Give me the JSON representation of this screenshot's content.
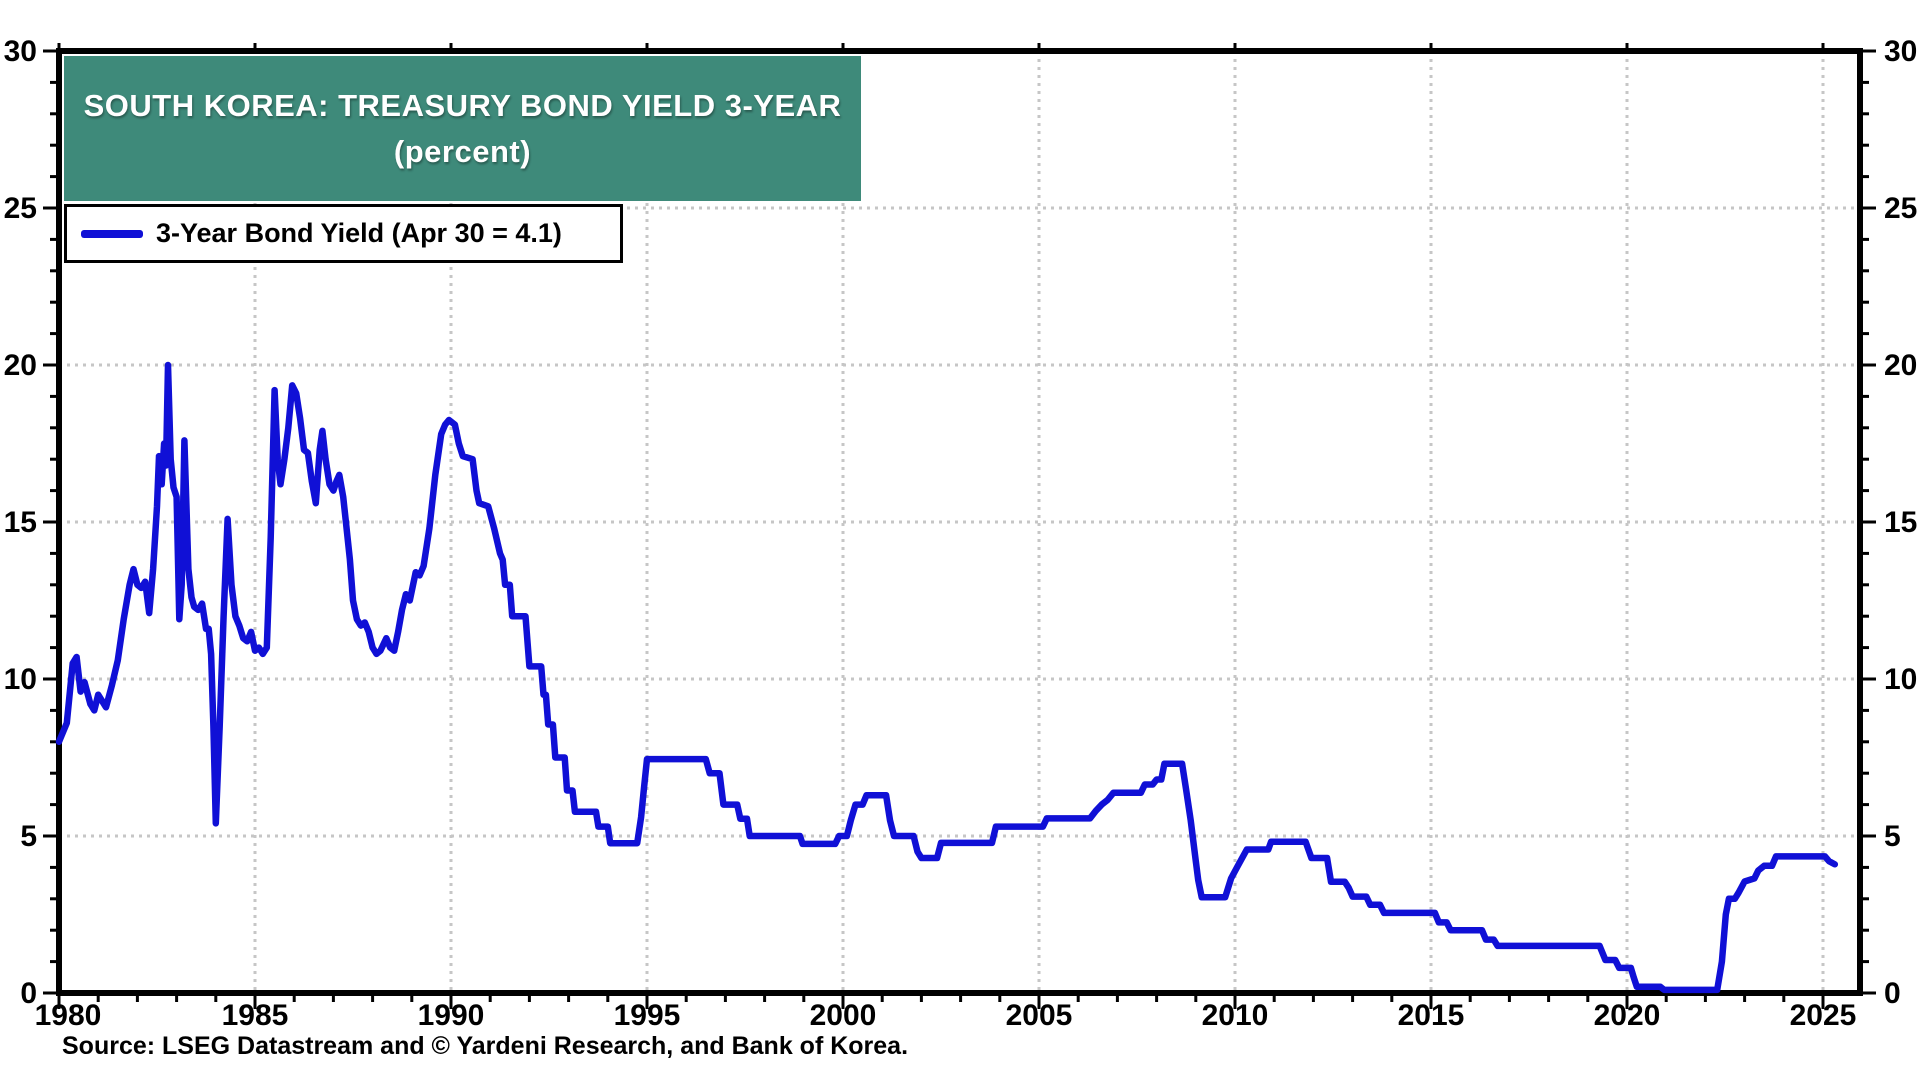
{
  "page": {
    "background": "#ffffff"
  },
  "title_box": {
    "line1": "SOUTH KOREA: TREASURY BOND YIELD 3-YEAR",
    "line2": "(percent)",
    "bg_color": "#3E8A7A",
    "text_color": "#ffffff"
  },
  "legend": {
    "label": "3-Year Bond Yield (Apr 30 = 4.1)",
    "line_color": "#1010D6"
  },
  "source": {
    "text": "Source: LSEG Datastream and © Yardeni Research, and Bank of Korea."
  },
  "axis": {
    "y_major_labels": [
      "0",
      "5",
      "10",
      "15",
      "20",
      "25",
      "30"
    ],
    "x_major_labels": [
      "1980",
      "1985",
      "1990",
      "1995",
      "2000",
      "2005",
      "2010",
      "2015",
      "2020",
      "2025"
    ],
    "grid_color": "#c6c6c6",
    "axis_color": "#000000"
  },
  "chart_data": {
    "type": "line",
    "title": "SOUTH KOREA: TREASURY BOND YIELD 3-YEAR",
    "subtitle": "(percent)",
    "xlabel": "",
    "ylabel": "percent",
    "xlim": [
      1980,
      2026
    ],
    "ylim": [
      0,
      30
    ],
    "y_ticks_major": [
      0,
      5,
      10,
      15,
      20,
      25,
      30
    ],
    "x_ticks_major": [
      1980,
      1985,
      1990,
      1995,
      2000,
      2005,
      2010,
      2015,
      2020,
      2025
    ],
    "grid": "dotted",
    "legend_position": "top-left",
    "last_point_annotation": "Apr 30 = 4.1",
    "series": [
      {
        "name": "3-Year Bond Yield (Apr 30 = 4.1)",
        "color": "#1010D6",
        "points": [
          [
            1980.0,
            8.0
          ],
          [
            1980.2,
            8.6
          ],
          [
            1980.35,
            10.5
          ],
          [
            1980.45,
            10.7
          ],
          [
            1980.55,
            9.6
          ],
          [
            1980.65,
            9.9
          ],
          [
            1980.8,
            9.2
          ],
          [
            1980.9,
            9.0
          ],
          [
            1981.0,
            9.5
          ],
          [
            1981.1,
            9.3
          ],
          [
            1981.2,
            9.1
          ],
          [
            1981.35,
            9.8
          ],
          [
            1981.5,
            10.6
          ],
          [
            1981.65,
            11.9
          ],
          [
            1981.8,
            13.0
          ],
          [
            1981.9,
            13.5
          ],
          [
            1982.0,
            13.0
          ],
          [
            1982.1,
            12.9
          ],
          [
            1982.2,
            13.1
          ],
          [
            1982.3,
            12.1
          ],
          [
            1982.4,
            13.5
          ],
          [
            1982.5,
            15.5
          ],
          [
            1982.55,
            17.1
          ],
          [
            1982.62,
            16.2
          ],
          [
            1982.68,
            17.5
          ],
          [
            1982.73,
            16.8
          ],
          [
            1982.78,
            20.0
          ],
          [
            1982.85,
            17.0
          ],
          [
            1982.92,
            16.1
          ],
          [
            1983.0,
            15.8
          ],
          [
            1983.07,
            11.9
          ],
          [
            1983.13,
            13.0
          ],
          [
            1983.2,
            17.6
          ],
          [
            1983.3,
            13.5
          ],
          [
            1983.38,
            12.6
          ],
          [
            1983.45,
            12.3
          ],
          [
            1983.55,
            12.2
          ],
          [
            1983.65,
            12.4
          ],
          [
            1983.75,
            11.6
          ],
          [
            1983.82,
            11.6
          ],
          [
            1983.88,
            10.8
          ],
          [
            1983.94,
            8.5
          ],
          [
            1984.0,
            5.4
          ],
          [
            1984.1,
            8.5
          ],
          [
            1984.2,
            12.0
          ],
          [
            1984.3,
            15.1
          ],
          [
            1984.4,
            13.0
          ],
          [
            1984.5,
            12.0
          ],
          [
            1984.6,
            11.7
          ],
          [
            1984.7,
            11.3
          ],
          [
            1984.8,
            11.2
          ],
          [
            1984.9,
            11.5
          ],
          [
            1985.0,
            10.9
          ],
          [
            1985.1,
            11.0
          ],
          [
            1985.2,
            10.8
          ],
          [
            1985.3,
            11.0
          ],
          [
            1985.4,
            14.5
          ],
          [
            1985.5,
            19.2
          ],
          [
            1985.58,
            17.0
          ],
          [
            1985.65,
            16.2
          ],
          [
            1985.75,
            17.0
          ],
          [
            1985.85,
            18.0
          ],
          [
            1985.95,
            19.35
          ],
          [
            1986.05,
            19.1
          ],
          [
            1986.15,
            18.3
          ],
          [
            1986.25,
            17.3
          ],
          [
            1986.35,
            17.2
          ],
          [
            1986.45,
            16.3
          ],
          [
            1986.55,
            15.6
          ],
          [
            1986.65,
            17.3
          ],
          [
            1986.72,
            17.9
          ],
          [
            1986.8,
            17.0
          ],
          [
            1986.9,
            16.2
          ],
          [
            1987.0,
            16.0
          ],
          [
            1987.08,
            16.3
          ],
          [
            1987.15,
            16.5
          ],
          [
            1987.25,
            15.8
          ],
          [
            1987.32,
            15.0
          ],
          [
            1987.42,
            13.8
          ],
          [
            1987.5,
            12.5
          ],
          [
            1987.6,
            11.9
          ],
          [
            1987.7,
            11.7
          ],
          [
            1987.8,
            11.8
          ],
          [
            1987.9,
            11.5
          ],
          [
            1988.0,
            11.0
          ],
          [
            1988.1,
            10.8
          ],
          [
            1988.2,
            10.9
          ],
          [
            1988.35,
            11.3
          ],
          [
            1988.45,
            11.0
          ],
          [
            1988.55,
            10.9
          ],
          [
            1988.65,
            11.5
          ],
          [
            1988.75,
            12.2
          ],
          [
            1988.85,
            12.7
          ],
          [
            1988.95,
            12.5
          ],
          [
            1989.1,
            13.4
          ],
          [
            1989.2,
            13.3
          ],
          [
            1989.3,
            13.6
          ],
          [
            1989.45,
            14.8
          ],
          [
            1989.6,
            16.5
          ],
          [
            1989.75,
            17.8
          ],
          [
            1989.85,
            18.1
          ],
          [
            1989.95,
            18.25
          ],
          [
            1990.1,
            18.1
          ],
          [
            1990.2,
            17.5
          ],
          [
            1990.3,
            17.1
          ],
          [
            1990.55,
            17.0
          ],
          [
            1990.65,
            16.0
          ],
          [
            1990.72,
            15.6
          ],
          [
            1990.95,
            15.5
          ],
          [
            1991.1,
            14.8
          ],
          [
            1991.25,
            14.0
          ],
          [
            1991.32,
            13.8
          ],
          [
            1991.38,
            13.0
          ],
          [
            1991.5,
            13.0
          ],
          [
            1991.56,
            12.0
          ],
          [
            1991.9,
            12.0
          ],
          [
            1992.0,
            10.4
          ],
          [
            1992.3,
            10.4
          ],
          [
            1992.36,
            9.5
          ],
          [
            1992.42,
            9.5
          ],
          [
            1992.48,
            8.55
          ],
          [
            1992.6,
            8.55
          ],
          [
            1992.66,
            7.5
          ],
          [
            1992.9,
            7.5
          ],
          [
            1992.96,
            6.45
          ],
          [
            1993.1,
            6.45
          ],
          [
            1993.16,
            5.77
          ],
          [
            1993.7,
            5.77
          ],
          [
            1993.76,
            5.3
          ],
          [
            1994.0,
            5.3
          ],
          [
            1994.06,
            4.77
          ],
          [
            1994.75,
            4.77
          ],
          [
            1994.85,
            5.6
          ],
          [
            1994.92,
            6.5
          ],
          [
            1995.0,
            7.45
          ],
          [
            1996.5,
            7.45
          ],
          [
            1996.6,
            7.0
          ],
          [
            1996.85,
            7.0
          ],
          [
            1996.95,
            6.0
          ],
          [
            1997.3,
            6.0
          ],
          [
            1997.38,
            5.55
          ],
          [
            1997.55,
            5.55
          ],
          [
            1997.62,
            5.0
          ],
          [
            1998.9,
            5.0
          ],
          [
            1998.97,
            4.75
          ],
          [
            1999.8,
            4.75
          ],
          [
            1999.9,
            5.0
          ],
          [
            2000.1,
            5.0
          ],
          [
            2000.2,
            5.5
          ],
          [
            2000.32,
            6.0
          ],
          [
            2000.5,
            6.0
          ],
          [
            2000.6,
            6.3
          ],
          [
            2001.1,
            6.3
          ],
          [
            2001.2,
            5.5
          ],
          [
            2001.3,
            5.0
          ],
          [
            2001.8,
            5.0
          ],
          [
            2001.9,
            4.5
          ],
          [
            2002.0,
            4.3
          ],
          [
            2002.4,
            4.3
          ],
          [
            2002.5,
            4.78
          ],
          [
            2003.8,
            4.78
          ],
          [
            2003.9,
            5.3
          ],
          [
            2005.1,
            5.3
          ],
          [
            2005.2,
            5.56
          ],
          [
            2006.3,
            5.56
          ],
          [
            2006.45,
            5.8
          ],
          [
            2006.6,
            6.0
          ],
          [
            2006.75,
            6.15
          ],
          [
            2006.9,
            6.38
          ],
          [
            2007.6,
            6.38
          ],
          [
            2007.7,
            6.64
          ],
          [
            2007.9,
            6.64
          ],
          [
            2008.0,
            6.8
          ],
          [
            2008.12,
            6.8
          ],
          [
            2008.2,
            7.3
          ],
          [
            2008.65,
            7.3
          ],
          [
            2008.75,
            6.5
          ],
          [
            2008.87,
            5.5
          ],
          [
            2009.0,
            4.2
          ],
          [
            2009.06,
            3.6
          ],
          [
            2009.15,
            3.05
          ],
          [
            2009.75,
            3.05
          ],
          [
            2009.9,
            3.65
          ],
          [
            2010.05,
            4.0
          ],
          [
            2010.3,
            4.57
          ],
          [
            2010.85,
            4.57
          ],
          [
            2010.92,
            4.82
          ],
          [
            2011.8,
            4.82
          ],
          [
            2011.95,
            4.3
          ],
          [
            2012.35,
            4.3
          ],
          [
            2012.45,
            3.54
          ],
          [
            2012.8,
            3.54
          ],
          [
            2012.9,
            3.35
          ],
          [
            2013.0,
            3.07
          ],
          [
            2013.35,
            3.07
          ],
          [
            2013.45,
            2.81
          ],
          [
            2013.7,
            2.81
          ],
          [
            2013.8,
            2.55
          ],
          [
            2015.1,
            2.55
          ],
          [
            2015.2,
            2.25
          ],
          [
            2015.4,
            2.25
          ],
          [
            2015.5,
            2.0
          ],
          [
            2016.3,
            2.0
          ],
          [
            2016.4,
            1.7
          ],
          [
            2016.6,
            1.7
          ],
          [
            2016.7,
            1.5
          ],
          [
            2019.3,
            1.5
          ],
          [
            2019.45,
            1.05
          ],
          [
            2019.7,
            1.05
          ],
          [
            2019.8,
            0.8
          ],
          [
            2020.1,
            0.8
          ],
          [
            2020.17,
            0.5
          ],
          [
            2020.25,
            0.2
          ],
          [
            2020.85,
            0.2
          ],
          [
            2020.95,
            0.1
          ],
          [
            2022.3,
            0.1
          ],
          [
            2022.42,
            1.0
          ],
          [
            2022.52,
            2.5
          ],
          [
            2022.6,
            3.0
          ],
          [
            2022.75,
            3.0
          ],
          [
            2022.85,
            3.2
          ],
          [
            2023.0,
            3.55
          ],
          [
            2023.25,
            3.65
          ],
          [
            2023.35,
            3.9
          ],
          [
            2023.5,
            4.05
          ],
          [
            2023.7,
            4.05
          ],
          [
            2023.8,
            4.35
          ],
          [
            2025.05,
            4.35
          ],
          [
            2025.15,
            4.2
          ],
          [
            2025.3,
            4.1
          ]
        ]
      }
    ]
  }
}
